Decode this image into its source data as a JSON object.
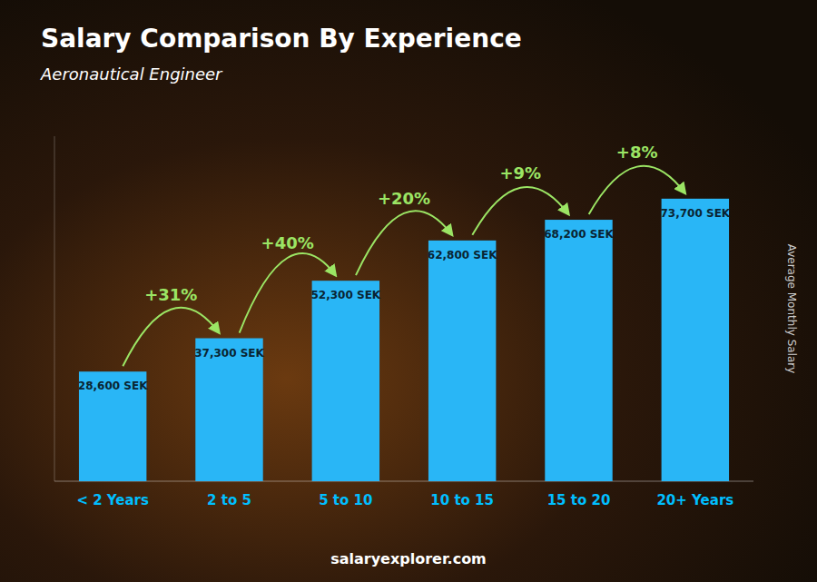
{
  "chart_data": {
    "type": "bar",
    "title": "Salary Comparison By Experience",
    "subtitle": "Aeronautical Engineer",
    "ylabel": "Average Monthly Salary",
    "categories": [
      "< 2 Years",
      "2 to 5",
      "5 to 10",
      "10 to 15",
      "15 to 20",
      "20+ Years"
    ],
    "values": [
      28600,
      37300,
      52300,
      62800,
      68200,
      73700
    ],
    "value_labels": [
      "28,600 SEK",
      "37,300 SEK",
      "52,300 SEK",
      "62,800 SEK",
      "68,200 SEK",
      "73,700 SEK"
    ],
    "data_labels": true,
    "annotations": [
      "+31%",
      "+40%",
      "+20%",
      "+9%",
      "+8%"
    ],
    "source": "salaryexplorer.com",
    "color": "#29B6F6",
    "ylim": [
      0,
      90000
    ],
    "tick_labels": false,
    "grid": false
  }
}
